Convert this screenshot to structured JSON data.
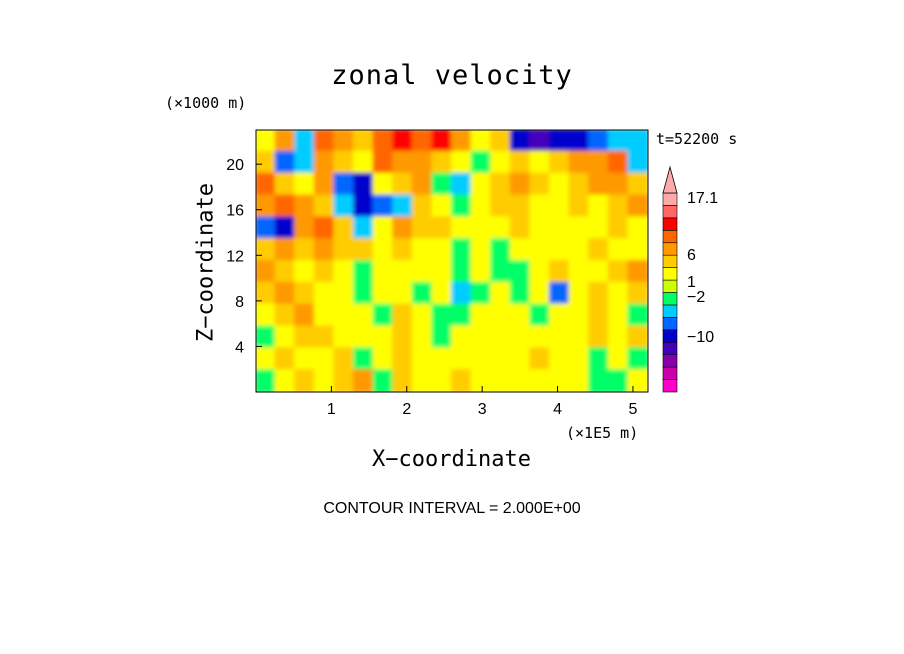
{
  "chart_data": {
    "type": "heatmap",
    "title": "zonal velocity",
    "xlabel": "X−coordinate",
    "ylabel": "Z−coordinate",
    "x_unit": "(×1E5 m)",
    "y_unit": "(×1000 m)",
    "time_label": "t=52200 s",
    "footer": "CONTOUR INTERVAL = 2.000E+00",
    "xlim": [
      0,
      5.2
    ],
    "ylim": [
      0,
      23
    ],
    "x_ticks": [
      "1",
      "2",
      "3",
      "4",
      "5"
    ],
    "x_tick_values": [
      1,
      2,
      3,
      4,
      5
    ],
    "y_ticks": [
      "4",
      "8",
      "12",
      "16",
      "20"
    ],
    "y_tick_values": [
      4,
      8,
      12,
      16,
      20
    ],
    "colorbar": {
      "labels": [
        "17.1",
        "6",
        "1",
        "−2",
        "−10"
      ],
      "label_values": [
        17.1,
        6,
        1,
        -2,
        -10
      ],
      "colors": [
        "#ff00cc",
        "#cc00aa",
        "#8800aa",
        "#4400bb",
        "#0000cc",
        "#0066ff",
        "#00ccff",
        "#00ff66",
        "#ccff00",
        "#ffff00",
        "#ffcc00",
        "#ff9900",
        "#ff6600",
        "#ff0000",
        "#ff6666",
        "#ffaaaa"
      ]
    },
    "field": {
      "grid": "12 rows (top z=23 to bottom z=0) x 20 columns (x=0 to 5.2); values in m/s",
      "values": [
        [
          2,
          6,
          -2,
          8,
          6,
          4,
          8,
          10,
          8,
          10,
          6,
          2,
          4,
          -6,
          -8,
          -6,
          -6,
          -4,
          -2,
          -2
        ],
        [
          4,
          -4,
          -2,
          6,
          4,
          2,
          8,
          6,
          6,
          4,
          2,
          0,
          2,
          4,
          2,
          4,
          6,
          6,
          8,
          -2
        ],
        [
          8,
          4,
          2,
          6,
          -4,
          -6,
          2,
          4,
          6,
          0,
          -2,
          2,
          4,
          6,
          4,
          2,
          4,
          6,
          6,
          4
        ],
        [
          6,
          8,
          6,
          4,
          -2,
          -6,
          -4,
          -2,
          4,
          2,
          0,
          2,
          4,
          4,
          2,
          2,
          4,
          2,
          4,
          6
        ],
        [
          -4,
          -6,
          6,
          8,
          4,
          -2,
          2,
          6,
          4,
          4,
          2,
          2,
          2,
          4,
          2,
          2,
          2,
          2,
          4,
          2
        ],
        [
          4,
          6,
          4,
          6,
          4,
          4,
          2,
          4,
          2,
          2,
          0,
          2,
          0,
          2,
          2,
          2,
          2,
          4,
          2,
          2
        ],
        [
          6,
          4,
          2,
          4,
          2,
          0,
          2,
          2,
          2,
          2,
          0,
          2,
          0,
          0,
          2,
          4,
          2,
          2,
          4,
          6
        ],
        [
          4,
          6,
          4,
          2,
          2,
          0,
          2,
          2,
          0,
          2,
          -2,
          0,
          2,
          0,
          2,
          -4,
          2,
          4,
          2,
          4
        ],
        [
          2,
          4,
          6,
          2,
          2,
          2,
          0,
          4,
          2,
          0,
          0,
          2,
          2,
          2,
          0,
          2,
          2,
          4,
          2,
          0
        ],
        [
          0,
          2,
          4,
          4,
          2,
          2,
          2,
          4,
          2,
          0,
          2,
          2,
          2,
          2,
          2,
          2,
          2,
          4,
          2,
          4
        ],
        [
          2,
          4,
          2,
          2,
          4,
          0,
          2,
          4,
          2,
          2,
          2,
          2,
          2,
          2,
          4,
          2,
          2,
          0,
          2,
          0
        ],
        [
          0,
          2,
          4,
          2,
          4,
          6,
          0,
          4,
          2,
          2,
          4,
          2,
          2,
          2,
          2,
          2,
          2,
          0,
          0,
          2
        ]
      ]
    }
  }
}
